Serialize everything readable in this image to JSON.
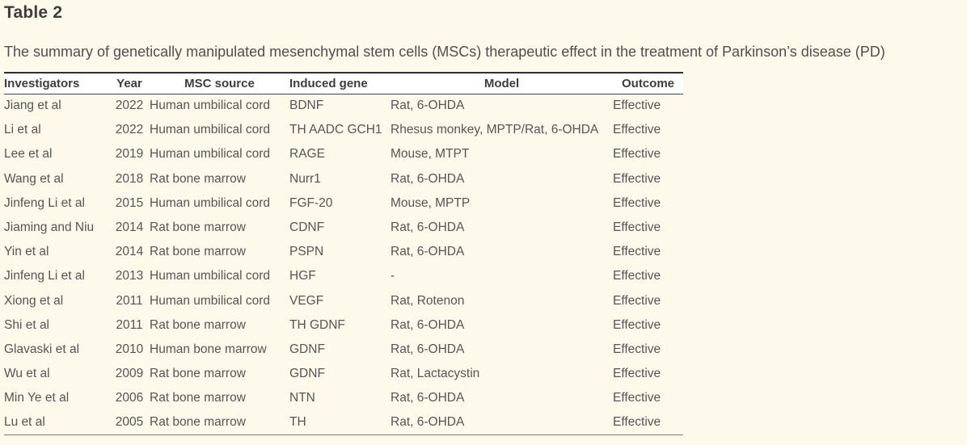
{
  "page": {
    "title": "Table 2",
    "caption": "The summary of genetically manipulated mesenchymal stem cells (MSCs) therapeutic effect in the treatment of Parkinson’s disease (PD)"
  },
  "colors": {
    "page_background": "#fdfaec",
    "header_background": "#ffffff",
    "border_dark": "#2f2f2f",
    "border_light": "#7a7a7a",
    "title_text": "#3d3d3d",
    "body_text": "#555555"
  },
  "table": {
    "columns": [
      "Investigators",
      "Year",
      "MSC source",
      "Induced gene",
      "Model",
      "Outcome"
    ],
    "rows": [
      [
        "Jiang et al",
        "2022",
        "Human umbilical cord",
        "BDNF",
        "Rat, 6-OHDA",
        "Effective"
      ],
      [
        "Li et al",
        "2022",
        "Human umbilical cord",
        "TH AADC GCH1",
        "Rhesus monkey, MPTP/Rat, 6-OHDA",
        "Effective"
      ],
      [
        "Lee et al",
        "2019",
        "Human umbilical cord",
        "RAGE",
        "Mouse, MTPT",
        "Effective"
      ],
      [
        "Wang et al",
        "2018",
        "Rat bone marrow",
        "Nurr1",
        "Rat, 6-OHDA",
        "Effective"
      ],
      [
        "Jinfeng Li et al",
        "2015",
        "Human umbilical cord",
        "FGF-20",
        "Mouse, MPTP",
        "Effective"
      ],
      [
        "Jiaming and Niu",
        "2014",
        "Rat bone marrow",
        "CDNF",
        "Rat, 6-OHDA",
        "Effective"
      ],
      [
        "Yin et al",
        "2014",
        "Rat bone marrow",
        "PSPN",
        "Rat, 6-OHDA",
        "Effective"
      ],
      [
        "Jinfeng Li et al",
        "2013",
        "Human umbilical cord",
        "HGF",
        "-",
        "Effective"
      ],
      [
        "Xiong et al",
        "2011",
        "Human umbilical cord",
        "VEGF",
        "Rat, Rotenon",
        "Effective"
      ],
      [
        "Shi et al",
        "2011",
        "Rat bone marrow",
        "TH GDNF",
        "Rat, 6-OHDA",
        "Effective"
      ],
      [
        "Glavaski et al",
        "2010",
        "Human bone marrow",
        "GDNF",
        "Rat, 6-OHDA",
        "Effective"
      ],
      [
        "Wu et al",
        "2009",
        "Rat bone marrow",
        "GDNF",
        "Rat, Lactacystin",
        "Effective"
      ],
      [
        "Min Ye et al",
        "2006",
        "Rat bone marrow",
        "NTN",
        "Rat, 6-OHDA",
        "Effective"
      ],
      [
        "Lu et al",
        "2005",
        "Rat bone marrow",
        "TH",
        "Rat, 6-OHDA",
        "Effective"
      ]
    ]
  }
}
